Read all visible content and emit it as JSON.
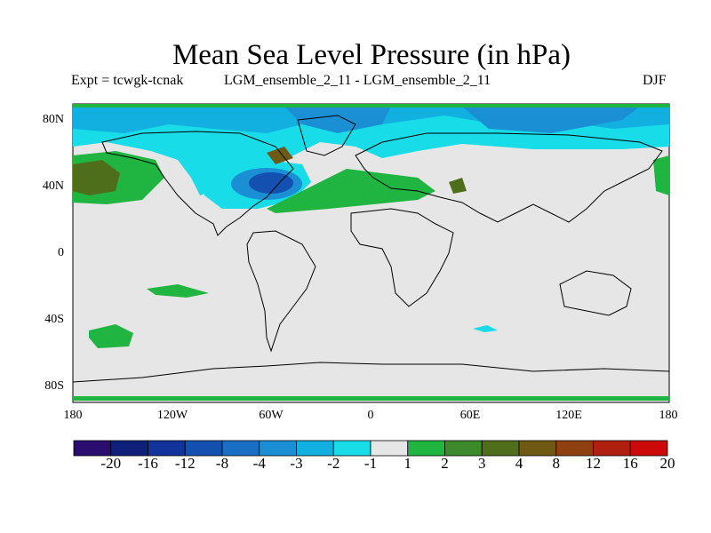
{
  "title": "Mean Sea Level Pressure (in hPa)",
  "subtitle_left": "Expt = tcwgk-tcnak",
  "subtitle_center": "LGM_ensemble_2_11 - LGM_ensemble_2_11",
  "subtitle_right": "DJF",
  "y_ticks": [
    "80N",
    "40N",
    "0",
    "40S",
    "80S"
  ],
  "x_ticks": [
    "180",
    "120W",
    "60W",
    "0",
    "60E",
    "120E",
    "180"
  ],
  "colorbar": {
    "labels": [
      "-20",
      "-16",
      "-12",
      "-8",
      "-4",
      "-3",
      "-2",
      "-1",
      "1",
      "2",
      "3",
      "4",
      "8",
      "12",
      "16",
      "20"
    ],
    "colors": [
      "#2a0d6e",
      "#0f1f7a",
      "#12339c",
      "#1450b0",
      "#1a6fc4",
      "#1a8fd4",
      "#12b0e0",
      "#18dce8",
      "#e6e6e6",
      "#20b440",
      "#3c8a2c",
      "#4f6e1c",
      "#6e5a12",
      "#8e4010",
      "#b02010",
      "#cc0a0a"
    ]
  },
  "colors": {
    "background": "#e6e6e6",
    "land_outline": "#000000"
  }
}
